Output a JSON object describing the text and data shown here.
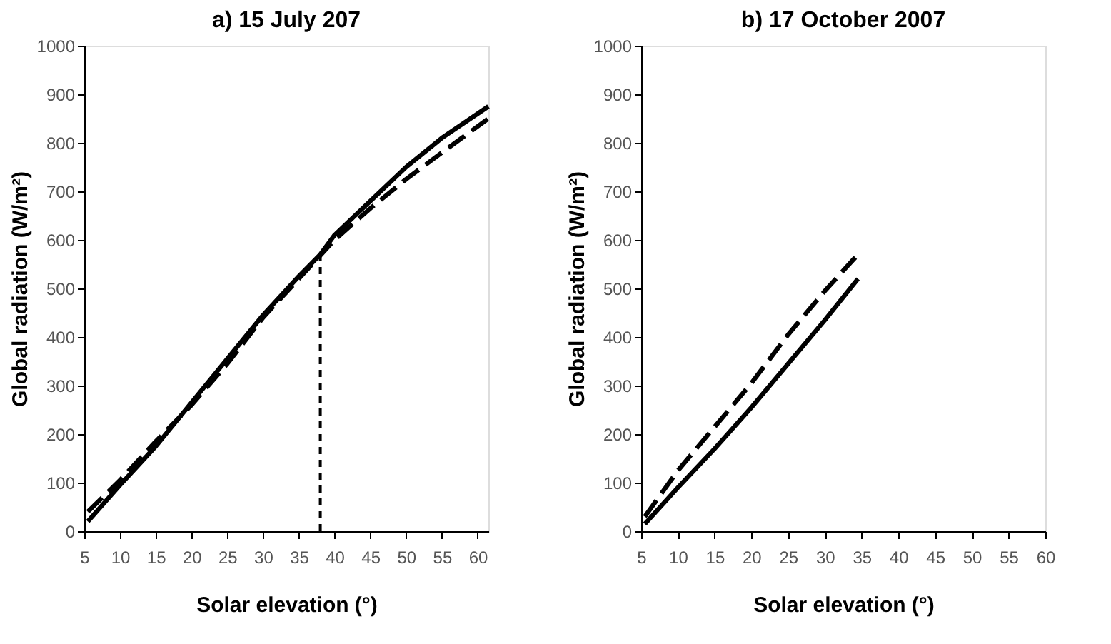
{
  "chart_data": [
    {
      "type": "line",
      "title": "a)    15 July 207",
      "xlabel": "Solar elevation (°)",
      "ylabel": "Global radiation (W/m²)",
      "xlim": [
        5,
        61.5
      ],
      "xticks": [
        5,
        10,
        15,
        20,
        25,
        30,
        35,
        40,
        45,
        50,
        55,
        60
      ],
      "ylim": [
        0,
        1000
      ],
      "yticks": [
        0,
        100,
        200,
        300,
        400,
        500,
        600,
        700,
        800,
        900,
        1000
      ],
      "grid": false,
      "marker": "none",
      "series": [
        {
          "color": "#000000",
          "line_style": "solid",
          "x": [
            5.5,
            10,
            15,
            20,
            25,
            30,
            35,
            38,
            40,
            45,
            50,
            55,
            61.5
          ],
          "values": [
            20,
            95,
            175,
            265,
            355,
            445,
            525,
            570,
            610,
            680,
            750,
            810,
            875
          ]
        },
        {
          "color": "#000000",
          "line_style": "dashed",
          "x": [
            5.5,
            10,
            15,
            20,
            25,
            30,
            35,
            40,
            45,
            50,
            55,
            61.5
          ],
          "values": [
            40,
            105,
            185,
            260,
            345,
            440,
            520,
            600,
            665,
            725,
            780,
            850
          ]
        }
      ],
      "ref_lines": [
        {
          "axis": "x",
          "value": 38,
          "line_style": "dashed",
          "color": "#000000"
        }
      ]
    },
    {
      "type": "line",
      "title": "b)   17 October 2007",
      "xlabel": "Solar elevation  (°)",
      "ylabel": "Global radiation (W/m²)",
      "xlim": [
        5,
        60
      ],
      "xticks": [
        5,
        10,
        15,
        20,
        25,
        30,
        35,
        40,
        45,
        50,
        55,
        60
      ],
      "ylim": [
        0,
        1000
      ],
      "yticks": [
        0,
        100,
        200,
        300,
        400,
        500,
        600,
        700,
        800,
        900,
        1000
      ],
      "grid": false,
      "marker": "none",
      "series": [
        {
          "color": "#000000",
          "line_style": "solid",
          "x": [
            5.5,
            10,
            15,
            20,
            25,
            30,
            34.5
          ],
          "values": [
            15,
            90,
            170,
            255,
            345,
            435,
            520
          ]
        },
        {
          "color": "#000000",
          "line_style": "dashed",
          "x": [
            5.5,
            10,
            15,
            20,
            25,
            30,
            34.5
          ],
          "values": [
            30,
            125,
            215,
            305,
            405,
            495,
            570
          ]
        }
      ]
    }
  ]
}
